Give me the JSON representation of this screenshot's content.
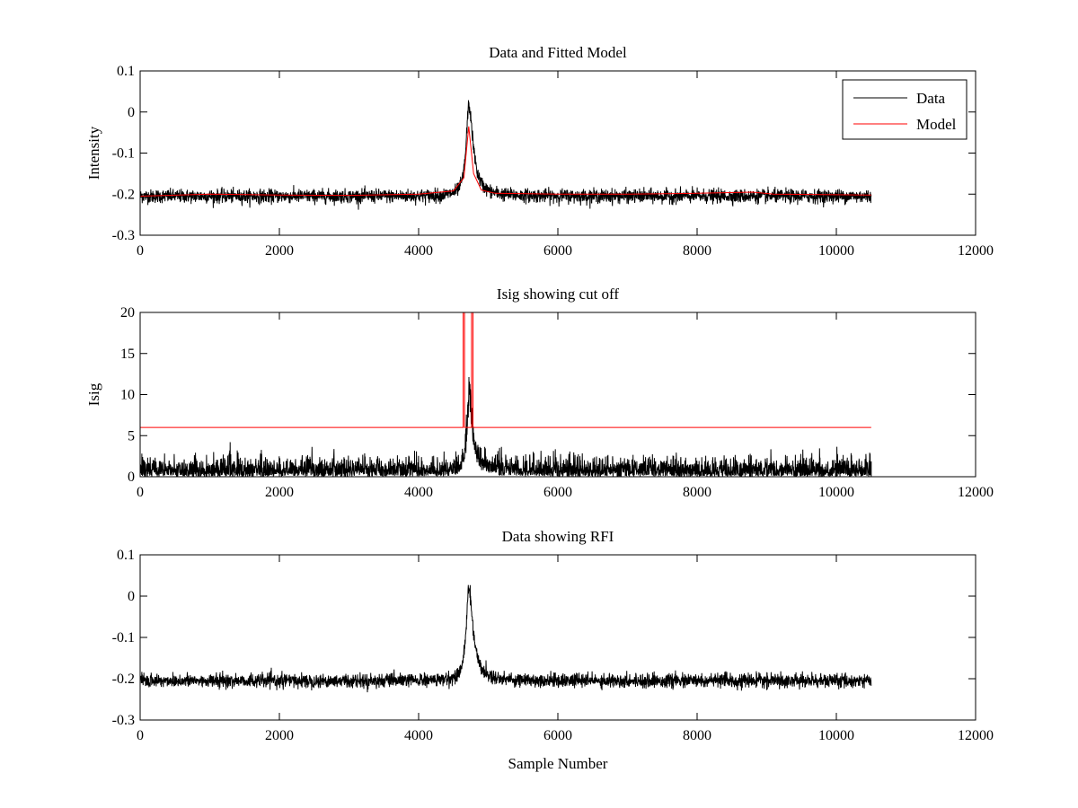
{
  "chart_data": [
    {
      "type": "line",
      "title": "Data and Fitted Model",
      "xlabel": "",
      "ylabel": "Intensity",
      "xlim": [
        0,
        12000
      ],
      "ylim": [
        -0.3,
        0.1
      ],
      "xticks": [
        0,
        2000,
        4000,
        6000,
        8000,
        10000,
        12000
      ],
      "xtick_labels": [
        "0",
        "2000",
        "4000",
        "6000",
        "8000",
        "10000",
        "12000"
      ],
      "yticks": [
        -0.3,
        -0.2,
        -0.1,
        0,
        0.1
      ],
      "ytick_labels": [
        "-0.3",
        "-0.2",
        "-0.1",
        "0",
        "0.1"
      ],
      "legend": {
        "position": "top-right",
        "entries": [
          "Data",
          "Model"
        ]
      },
      "series": [
        {
          "name": "Data",
          "color": "#000000",
          "kind": "noisy-signal",
          "x_range": [
            0,
            10500
          ],
          "baseline": -0.205,
          "noise_amplitude": 0.015,
          "peak_x": 4720,
          "peak_y": 0.015
        },
        {
          "name": "Model",
          "color": "#ff0000",
          "kind": "smooth-fit",
          "x_range": [
            0,
            10500
          ],
          "points": [
            [
              0,
              -0.205
            ],
            [
              1000,
              -0.2
            ],
            [
              2000,
              -0.202
            ],
            [
              3000,
              -0.203
            ],
            [
              4000,
              -0.2
            ],
            [
              4500,
              -0.192
            ],
            [
              4650,
              -0.16
            ],
            [
              4720,
              -0.035
            ],
            [
              4790,
              -0.15
            ],
            [
              4900,
              -0.19
            ],
            [
              5100,
              -0.198
            ],
            [
              6000,
              -0.2
            ],
            [
              7000,
              -0.2
            ],
            [
              8000,
              -0.198
            ],
            [
              8800,
              -0.195
            ],
            [
              9100,
              -0.2
            ],
            [
              10500,
              -0.202
            ]
          ]
        }
      ]
    },
    {
      "type": "line",
      "title": "Isig showing cut off",
      "xlabel": "",
      "ylabel": "Isig",
      "xlim": [
        0,
        12000
      ],
      "ylim": [
        0,
        20
      ],
      "xticks": [
        0,
        2000,
        4000,
        6000,
        8000,
        10000,
        12000
      ],
      "xtick_labels": [
        "0",
        "2000",
        "4000",
        "6000",
        "8000",
        "10000",
        "12000"
      ],
      "yticks": [
        0,
        5,
        10,
        15,
        20
      ],
      "ytick_labels": [
        "0",
        "5",
        "10",
        "15",
        "20"
      ],
      "series": [
        {
          "name": "Isig",
          "color": "#000000",
          "kind": "noisy-abs",
          "x_range": [
            0,
            10500
          ],
          "noise_amplitude": 2.0,
          "peak_x": 4720,
          "peak_y": 12
        },
        {
          "name": "Cut off",
          "color": "#ff0000",
          "kind": "threshold",
          "points": [
            [
              0,
              6
            ],
            [
              4640,
              6
            ],
            [
              4640,
              20
            ],
            [
              4660,
              20
            ],
            [
              4660,
              6
            ],
            [
              4760,
              6
            ],
            [
              4760,
              20
            ],
            [
              4780,
              20
            ],
            [
              4780,
              6
            ],
            [
              10500,
              6
            ]
          ]
        }
      ]
    },
    {
      "type": "line",
      "title": "Data showing RFI",
      "xlabel": "Sample Number",
      "ylabel": "",
      "xlim": [
        0,
        12000
      ],
      "ylim": [
        -0.3,
        0.1
      ],
      "xticks": [
        0,
        2000,
        4000,
        6000,
        8000,
        10000,
        12000
      ],
      "xtick_labels": [
        "0",
        "2000",
        "4000",
        "6000",
        "8000",
        "10000",
        "12000"
      ],
      "yticks": [
        -0.3,
        -0.2,
        -0.1,
        0,
        0.1
      ],
      "ytick_labels": [
        "-0.3",
        "-0.2",
        "-0.1",
        "0",
        "0.1"
      ],
      "series": [
        {
          "name": "Data",
          "color": "#000000",
          "kind": "noisy-signal",
          "x_range": [
            0,
            10500
          ],
          "baseline": -0.205,
          "noise_amplitude": 0.015,
          "peak_x": 4720,
          "peak_y": 0.015
        }
      ]
    }
  ]
}
